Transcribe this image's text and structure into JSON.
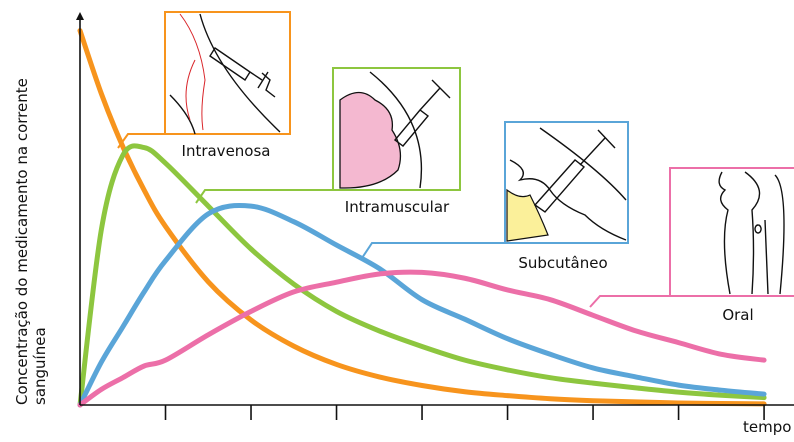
{
  "chart_data": {
    "type": "line",
    "y_label_lines": [
      "Concentração do medicamento na corrente",
      "sanguínea"
    ],
    "x_label": "tempo",
    "x": [
      0,
      0.25,
      0.5,
      0.75,
      1,
      1.5,
      2,
      2.5,
      3,
      3.5,
      4,
      4.5,
      5,
      5.5,
      6,
      6.5,
      7,
      7.5,
      8
    ],
    "xlim": [
      0,
      8.35
    ],
    "ylim": [
      0,
      100
    ],
    "xticks": [
      1,
      2,
      3,
      4,
      5,
      6,
      7,
      8
    ],
    "series": [
      {
        "name": "Intravenosa",
        "color": "#f7941d",
        "values": [
          96,
          79.8,
          66.3,
          55.1,
          45.8,
          31.6,
          21.8,
          15.1,
          10.4,
          7.2,
          5.0,
          3.4,
          2.4,
          1.6,
          1.1,
          0.8,
          0.5,
          0.4,
          0.3
        ]
      },
      {
        "name": "Intramuscular",
        "color": "#8dc63f",
        "values": [
          0,
          45,
          64,
          66,
          62,
          51,
          40,
          31,
          24,
          19,
          15,
          11.5,
          9,
          7,
          5.6,
          4.4,
          3.3,
          2.5,
          1.9
        ]
      },
      {
        "name": "Subcutâneo",
        "color": "#5aa5d8",
        "values": [
          0,
          11,
          20,
          29,
          37,
          49,
          51,
          47,
          41,
          35,
          27,
          22,
          17,
          13,
          9.5,
          7.2,
          5.1,
          3.8,
          2.8
        ]
      },
      {
        "name": "Oral",
        "color": "#ec6fa8",
        "values": [
          0,
          4,
          7,
          10,
          11.5,
          18,
          24,
          29,
          31.5,
          33.6,
          34,
          32.5,
          29.5,
          27,
          23,
          19,
          16,
          13,
          11.5
        ]
      }
    ]
  }
}
